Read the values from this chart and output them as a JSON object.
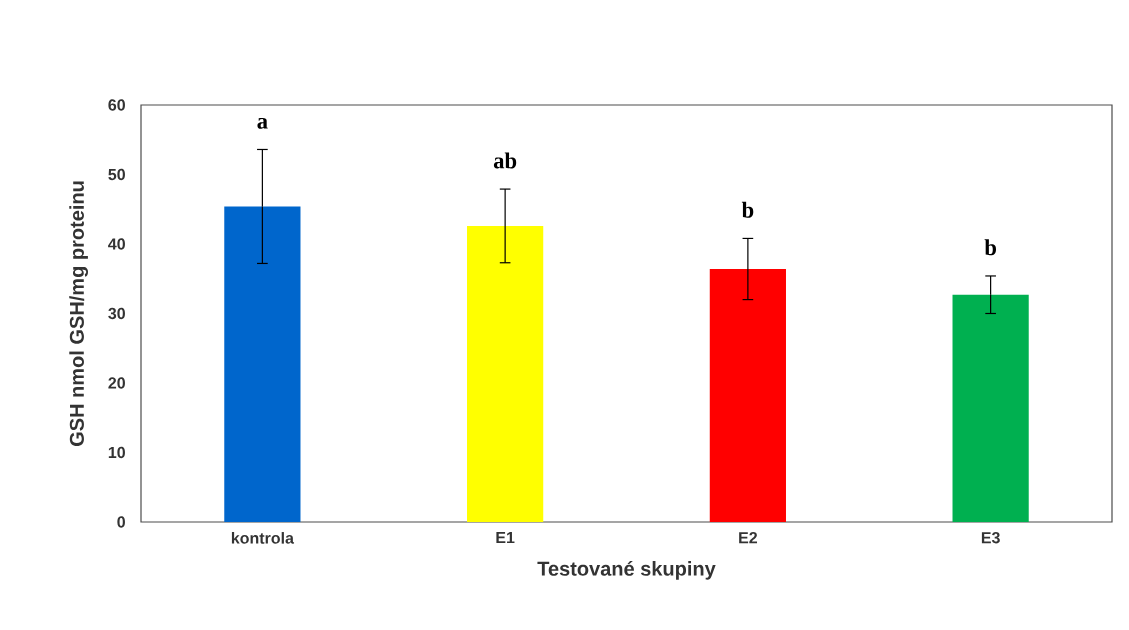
{
  "chart_data": {
    "type": "bar",
    "xlabel": "Testované skupiny",
    "ylabel": "GSH nmol GSH/mg proteinu",
    "categories": [
      "kontrola",
      "E1",
      "E2",
      "E3"
    ],
    "values": [
      45.4,
      42.6,
      36.4,
      32.7
    ],
    "errors": [
      8.2,
      5.3,
      4.4,
      2.7
    ],
    "colors": [
      "#0066cc",
      "#ffff00",
      "#ff0000",
      "#00b050"
    ],
    "ylim": [
      0,
      60
    ],
    "yticks": [
      0,
      10,
      20,
      30,
      40,
      50,
      60
    ],
    "annotations": [
      "a",
      "ab",
      "b",
      "b"
    ]
  }
}
